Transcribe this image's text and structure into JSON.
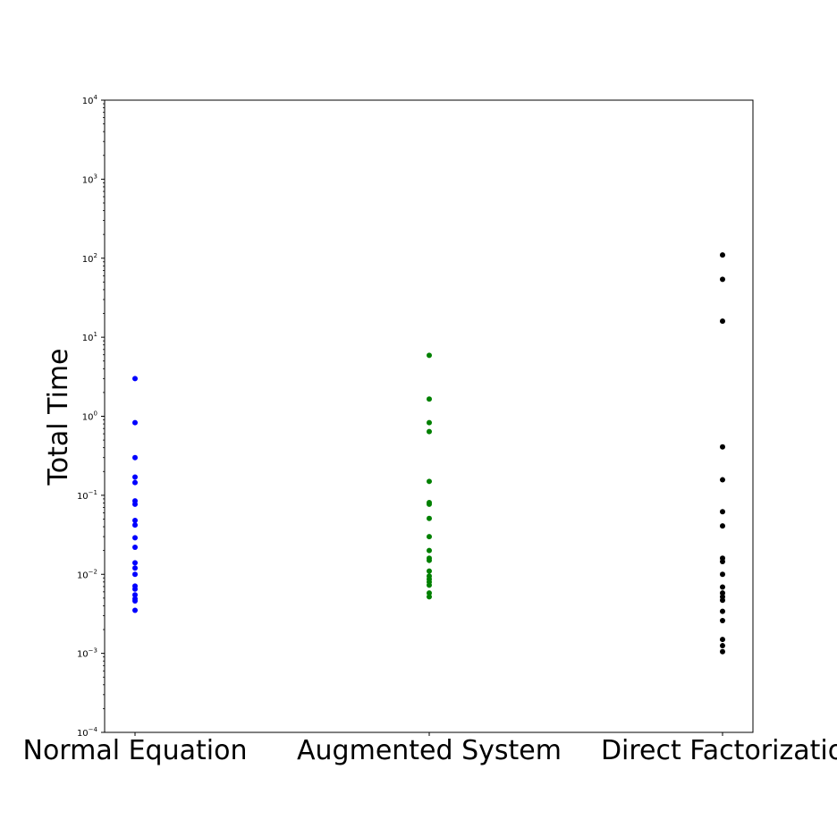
{
  "chart_data": {
    "type": "scatter",
    "title": "",
    "xlabel": "",
    "ylabel": "Total Time",
    "yscale": "log",
    "ylim": [
      0.0001,
      10000
    ],
    "y_tick_labels": [
      {
        "value": 0.0001,
        "base": "10",
        "exp": "−4"
      },
      {
        "value": 0.001,
        "base": "10",
        "exp": "−3"
      },
      {
        "value": 0.01,
        "base": "10",
        "exp": "−2"
      },
      {
        "value": 0.1,
        "base": "10",
        "exp": "−1"
      },
      {
        "value": 1,
        "base": "10",
        "exp": "0"
      },
      {
        "value": 10,
        "base": "10",
        "exp": "1"
      },
      {
        "value": 100,
        "base": "10",
        "exp": "2"
      },
      {
        "value": 1000,
        "base": "10",
        "exp": "3"
      },
      {
        "value": 10000,
        "base": "10",
        "exp": "4"
      }
    ],
    "categories": [
      "Normal Equation",
      "Augmented System",
      "Direct Factorizatio"
    ],
    "grid": false,
    "series": [
      {
        "category": "Normal Equation",
        "color": "#0000ff",
        "values": [
          3.0,
          0.83,
          0.3,
          0.17,
          0.145,
          0.085,
          0.077,
          0.048,
          0.042,
          0.029,
          0.022,
          0.014,
          0.012,
          0.01,
          0.0071,
          0.0065,
          0.0055,
          0.0049,
          0.0046,
          0.0035
        ]
      },
      {
        "category": "Augmented System",
        "color": "#008000",
        "values": [
          5.9,
          1.65,
          0.83,
          0.64,
          0.15,
          0.081,
          0.077,
          0.051,
          0.03,
          0.02,
          0.016,
          0.015,
          0.011,
          0.0095,
          0.0087,
          0.008,
          0.0073,
          0.0058,
          0.0052
        ]
      },
      {
        "category": "Direct Factorizatio",
        "color": "#000000",
        "values": [
          110,
          54,
          16,
          0.41,
          0.157,
          0.062,
          0.041,
          0.016,
          0.0145,
          0.01,
          0.0069,
          0.0058,
          0.0052,
          0.0047,
          0.0034,
          0.0026,
          0.0015,
          0.00125,
          0.00105
        ]
      }
    ]
  }
}
